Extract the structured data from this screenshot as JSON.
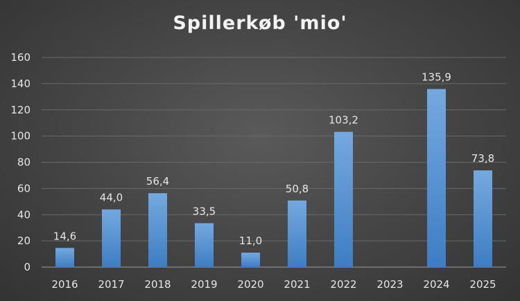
{
  "chart_data": {
    "type": "bar",
    "title": "Spillerkøb 'mio'",
    "categories": [
      "2016",
      "2017",
      "2018",
      "2019",
      "2020",
      "2021",
      "2022",
      "2023",
      "2024",
      "2025"
    ],
    "values": [
      14.6,
      44.0,
      56.4,
      33.5,
      11.0,
      50.8,
      103.2,
      null,
      135.9,
      73.8
    ],
    "data_labels": [
      "14,6",
      "44,0",
      "56,4",
      "33,5",
      "11,0",
      "50,8",
      "103,2",
      "",
      "135,9",
      "73,8"
    ],
    "y_ticks": [
      "0",
      "20",
      "40",
      "60",
      "80",
      "100",
      "120",
      "140",
      "160"
    ],
    "xlabel": "",
    "ylabel": "",
    "ylim": [
      0,
      160
    ],
    "grid": true,
    "legend": "none",
    "colors": {
      "bar_top": "#74a9df",
      "bar_bottom": "#3e7dc3",
      "grid": "#6a6a6a",
      "axis": "#8a8a8a",
      "text": "#e6e6e6"
    }
  }
}
